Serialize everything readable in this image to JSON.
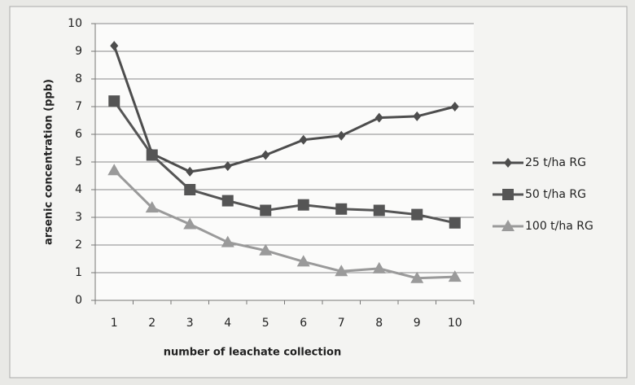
{
  "chart_data": {
    "type": "line",
    "x_label": "number of leachate collection",
    "y_label": "arsenic concentration (ppb)",
    "categories": [
      "1",
      "2",
      "3",
      "4",
      "5",
      "6",
      "7",
      "8",
      "9",
      "10"
    ],
    "series": [
      {
        "name": "25 t/ha RG",
        "color": "#4d4d4d",
        "marker": "diamond",
        "values": [
          9.2,
          5.3,
          4.65,
          4.85,
          5.25,
          5.8,
          5.95,
          6.6,
          6.65,
          7.0
        ]
      },
      {
        "name": "50 t/ha RG",
        "color": "#555555",
        "marker": "square",
        "values": [
          7.2,
          5.25,
          4.0,
          3.6,
          3.25,
          3.45,
          3.3,
          3.25,
          3.1,
          2.8
        ]
      },
      {
        "name": "100 t/ha RG",
        "color": "#9a9a9a",
        "marker": "triangle",
        "values": [
          4.7,
          3.35,
          2.75,
          2.1,
          1.8,
          1.4,
          1.05,
          1.15,
          0.8,
          0.85
        ]
      }
    ],
    "ylim": [
      0,
      10
    ],
    "yticks": [
      0,
      1,
      2,
      3,
      4,
      5,
      6,
      7,
      8,
      9,
      10
    ],
    "grid": true,
    "legend": "right"
  }
}
